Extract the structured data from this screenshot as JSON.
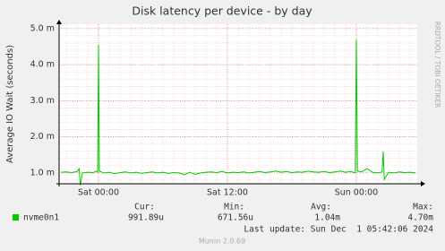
{
  "chart_data": {
    "type": "line",
    "title": "Disk latency per device - by day",
    "y_label": "Average IO Wait (seconds)",
    "side_label": "RRDTOOL / TOBI OETIKER",
    "x": [
      -3.5,
      -3.0,
      -2.5,
      -2.0,
      -1.8,
      -1.7,
      -1.5,
      -1.0,
      -0.5,
      -0.2,
      -0.08,
      0.0,
      0.08,
      0.5,
      1.0,
      1.5,
      2.0,
      2.5,
      3.0,
      3.5,
      4.0,
      4.5,
      5.0,
      5.5,
      6.0,
      6.5,
      7.0,
      7.5,
      8.0,
      8.5,
      9.0,
      9.5,
      10.0,
      10.5,
      11.0,
      11.5,
      12.0,
      12.5,
      13.0,
      13.5,
      14.0,
      14.5,
      15.0,
      15.5,
      16.0,
      16.5,
      17.0,
      17.5,
      18.0,
      18.5,
      19.0,
      19.5,
      20.0,
      20.5,
      21.0,
      21.5,
      22.0,
      22.5,
      23.0,
      23.5,
      23.9,
      24.0,
      24.1,
      24.5,
      25.0,
      25.5,
      26.0,
      26.4,
      26.5,
      26.6,
      27.0,
      27.5,
      28.0,
      28.5,
      29.0,
      29.5
    ],
    "series": [
      {
        "name": "nvme0n1",
        "color": "#00cc00",
        "values": [
          1.02,
          1.03,
          1.01,
          1.04,
          1.12,
          0.66,
          1.0,
          1.02,
          1.01,
          1.05,
          1.02,
          4.55,
          1.05,
          1.0,
          1.02,
          0.98,
          1.01,
          1.03,
          1.0,
          1.02,
          0.99,
          1.01,
          1.03,
          1.0,
          1.02,
          0.99,
          1.01,
          1.0,
          0.95,
          1.02,
          0.96,
          1.0,
          1.02,
          1.03,
          1.01,
          1.04,
          1.0,
          1.02,
          1.01,
          1.03,
          1.0,
          1.02,
          1.04,
          1.01,
          1.03,
          1.05,
          1.02,
          1.04,
          1.01,
          1.03,
          1.02,
          1.05,
          1.03,
          1.02,
          1.04,
          1.01,
          1.03,
          1.05,
          1.02,
          1.04,
          1.0,
          4.7,
          1.05,
          1.03,
          1.12,
          1.02,
          1.0,
          1.03,
          1.6,
          0.82,
          1.02,
          1.0,
          1.03,
          1.01,
          1.02,
          1.0
        ]
      }
    ],
    "xlim": [
      -3.67,
      29.67
    ],
    "xticks": [
      {
        "value": 0,
        "label": "Sat 00:00"
      },
      {
        "value": 12,
        "label": "Sat 12:00"
      },
      {
        "value": 24,
        "label": "Sun 00:00"
      }
    ],
    "ylim": [
      0.7,
      5.12
    ],
    "yticks": [
      {
        "value": 1,
        "label": "1.0 m"
      },
      {
        "value": 2,
        "label": "2.0 m"
      },
      {
        "value": 3,
        "label": "3.0 m"
      },
      {
        "value": 4,
        "label": "4.0 m"
      },
      {
        "value": 5,
        "label": "5.0 m"
      }
    ],
    "grid": true,
    "minor_grid": true,
    "legend": {
      "headers": [
        "Cur:",
        "Min:",
        "Avg:",
        "Max:"
      ],
      "rows": [
        [
          "991.89u",
          "671.56u",
          "1.04m",
          "4.70m"
        ]
      ]
    },
    "last_update": "Last update: Sun Dec  1 05:42:06 2024",
    "footer": "Munin 2.0.69"
  }
}
